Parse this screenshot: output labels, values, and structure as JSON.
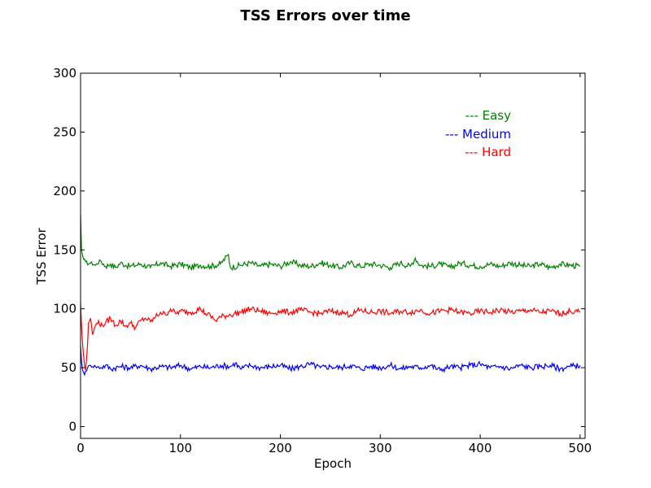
{
  "chart_data": {
    "type": "line",
    "title": "TSS Errors over time",
    "xlabel": "Epoch",
    "ylabel": "TSS Error",
    "xlim": [
      0,
      505
    ],
    "ylim": [
      -10,
      300
    ],
    "xticks": [
      0,
      100,
      200,
      300,
      400,
      500
    ],
    "yticks": [
      0,
      50,
      100,
      150,
      200,
      250,
      300
    ],
    "grid": false,
    "legend_position": "top-right",
    "series": [
      {
        "name": "--- Easy",
        "color": "#008000",
        "x": [
          0,
          1,
          2,
          3,
          5,
          8,
          10,
          15,
          20,
          25,
          30,
          35,
          40,
          45,
          50,
          60,
          70,
          80,
          90,
          100,
          110,
          120,
          130,
          140,
          148,
          150,
          160,
          170,
          180,
          190,
          200,
          210,
          220,
          230,
          240,
          250,
          260,
          270,
          280,
          290,
          300,
          310,
          320,
          330,
          335,
          340,
          350,
          360,
          370,
          380,
          390,
          400,
          410,
          420,
          430,
          440,
          450,
          460,
          470,
          480,
          490,
          500
        ],
        "values": [
          180,
          150,
          145,
          142,
          140,
          138,
          139,
          137,
          141,
          136,
          138,
          135,
          139,
          137,
          136,
          138,
          135,
          139,
          136,
          138,
          135,
          137,
          136,
          138,
          146,
          135,
          137,
          139,
          136,
          138,
          136,
          140,
          137,
          136,
          139,
          137,
          135,
          139,
          136,
          138,
          137,
          135,
          139,
          136,
          143,
          137,
          136,
          138,
          135,
          139,
          137,
          136,
          138,
          136,
          139,
          137,
          136,
          138,
          135,
          138,
          137,
          136
        ]
      },
      {
        "name": "--- Medium",
        "color": "#0000ff",
        "x": [
          0,
          1,
          2,
          3,
          4,
          5,
          7,
          10,
          15,
          20,
          25,
          30,
          40,
          50,
          60,
          70,
          80,
          90,
          100,
          110,
          120,
          130,
          140,
          150,
          155,
          160,
          170,
          180,
          190,
          200,
          210,
          220,
          230,
          240,
          250,
          260,
          270,
          280,
          290,
          300,
          310,
          320,
          330,
          340,
          350,
          360,
          370,
          380,
          390,
          400,
          410,
          420,
          430,
          440,
          450,
          460,
          470,
          480,
          490,
          500
        ],
        "values": [
          68,
          55,
          48,
          46,
          44,
          47,
          50,
          52,
          51,
          50,
          52,
          49,
          51,
          50,
          52,
          49,
          51,
          50,
          52,
          49,
          51,
          50,
          52,
          51,
          54,
          49,
          52,
          50,
          51,
          52,
          49,
          51,
          53,
          50,
          51,
          50,
          52,
          49,
          51,
          50,
          52,
          49,
          51,
          50,
          52,
          48,
          51,
          50,
          52,
          53,
          50,
          51,
          49,
          52,
          50,
          51,
          52,
          49,
          51,
          52
        ]
      },
      {
        "name": "--- Hard",
        "color": "#ff0000",
        "x": [
          0,
          1,
          2,
          3,
          4,
          5,
          6,
          7,
          8,
          10,
          12,
          15,
          18,
          20,
          25,
          30,
          35,
          40,
          45,
          50,
          55,
          60,
          65,
          70,
          75,
          80,
          85,
          90,
          95,
          100,
          110,
          120,
          125,
          130,
          135,
          140,
          150,
          160,
          170,
          180,
          190,
          200,
          210,
          220,
          230,
          240,
          250,
          260,
          270,
          280,
          290,
          300,
          310,
          320,
          330,
          340,
          350,
          360,
          370,
          380,
          390,
          400,
          410,
          420,
          430,
          440,
          450,
          460,
          470,
          480,
          490,
          500
        ],
        "values": [
          105,
          85,
          70,
          60,
          52,
          48,
          58,
          70,
          88,
          92,
          78,
          86,
          90,
          85,
          88,
          92,
          86,
          90,
          85,
          88,
          84,
          90,
          92,
          89,
          93,
          97,
          95,
          100,
          96,
          98,
          97,
          100,
          96,
          94,
          90,
          93,
          95,
          97,
          100,
          98,
          96,
          98,
          97,
          99,
          97,
          96,
          98,
          97,
          95,
          99,
          97,
          98,
          96,
          98,
          97,
          99,
          96,
          98,
          99,
          97,
          96,
          98,
          97,
          99,
          97,
          98,
          99,
          97,
          98,
          96,
          98,
          97
        ]
      }
    ]
  }
}
